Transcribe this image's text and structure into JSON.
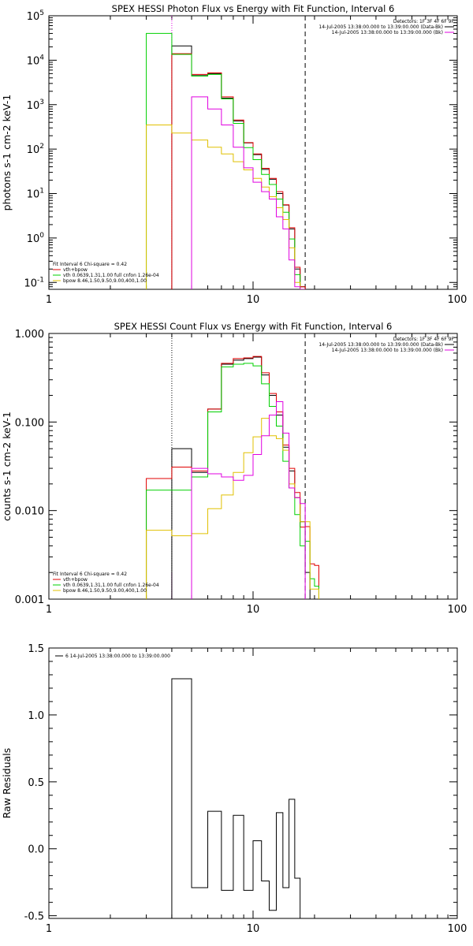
{
  "colors": {
    "data": "#000000",
    "total": "#e00000",
    "vth": "#00d000",
    "bpow": "#e0c000",
    "residual": "#e000e0",
    "frame": "#000000"
  },
  "chart_data": [
    {
      "type": "line",
      "title": "SPEX HESSI Photon Flux vs Energy with Fit Function, Interval 6",
      "ylabel": "photons s-1 cm-2 keV-1",
      "xscale": "log",
      "yscale": "log",
      "xlim": [
        1,
        100
      ],
      "ylim": [
        0.07,
        100000
      ],
      "xticks": [
        "1",
        "10",
        "100"
      ],
      "yticks": [
        {
          "v": 0.1,
          "b": "10",
          "e": "-1"
        },
        {
          "v": 1,
          "b": "10",
          "e": "0"
        },
        {
          "v": 10,
          "b": "10",
          "e": "1"
        },
        {
          "v": 100,
          "b": "10",
          "e": "2"
        },
        {
          "v": 1000,
          "b": "10",
          "e": "3"
        },
        {
          "v": 10000,
          "b": "10",
          "e": "4"
        },
        {
          "v": 100000,
          "b": "10",
          "e": "5"
        }
      ],
      "vlines": [
        {
          "x": 4.0,
          "style": "dotted",
          "color": "#e000e0"
        },
        {
          "x": 18.0,
          "style": "dashed",
          "color": "#000000"
        }
      ],
      "legend_right": [
        "Detectors: 1F 3F 4F 6F 9F",
        "14-Jul-2005 13:38:00.000 to 13:39:00.000 (Data-Bk)",
        "14-Jul-2005 13:38:00.000 to 13:39:00.000 (Bk)"
      ],
      "legend_left": [
        "Fit Interval 6    Chi-square = 0.42",
        "vth+bpow",
        "vth 0.0639,1.31,1.00  full cnfon 1.26e-04",
        "bpow 8.46,1.50,9.50,9.00,400,1.00"
      ],
      "edges": [
        3,
        4,
        5,
        6,
        7,
        8,
        9,
        10,
        11,
        12,
        13,
        14,
        15,
        16,
        17,
        18
      ],
      "series": [
        {
          "name": "data",
          "color": "#000000",
          "values": [
            null,
            21000,
            4500,
            5000,
            1400,
            430,
            138,
            75,
            35,
            21,
            10,
            5.5,
            1.6,
            0.2,
            0.08
          ]
        },
        {
          "name": "total",
          "color": "#e00000",
          "values": [
            null,
            14000,
            4800,
            5200,
            1500,
            450,
            140,
            78,
            37,
            22,
            11,
            5.6,
            1.7,
            0.22,
            0.08
          ]
        },
        {
          "name": "vth",
          "color": "#00d000",
          "values": [
            40000,
            13500,
            4400,
            4800,
            1350,
            380,
            108,
            58,
            27,
            16,
            7.5,
            3.8,
            0.95,
            0.15,
            0.07
          ]
        },
        {
          "name": "bpow",
          "color": "#e0c000",
          "values": [
            350,
            230,
            160,
            110,
            78,
            52,
            34,
            22,
            14,
            8.5,
            4.8,
            2.6,
            0.6,
            0.1,
            0.06
          ]
        },
        {
          "name": "bpow-low",
          "color": "#e000e0",
          "values": [
            null,
            null,
            1500,
            800,
            350,
            110,
            38,
            18,
            11,
            7.5,
            3,
            1.6,
            0.32,
            0.08,
            0.06
          ]
        }
      ]
    },
    {
      "type": "line",
      "title": "SPEX HESSI Count Flux vs Energy with Fit Function, Interval 6",
      "ylabel": "counts s-1 cm-2 keV-1",
      "xscale": "log",
      "yscale": "log",
      "xlim": [
        1,
        100
      ],
      "ylim": [
        0.001,
        1.0
      ],
      "xticks": [
        "1",
        "10",
        "100"
      ],
      "yticks": [
        {
          "v": 0.001,
          "l": "0.001"
        },
        {
          "v": 0.01,
          "l": "0.010"
        },
        {
          "v": 0.1,
          "l": "0.100"
        },
        {
          "v": 1,
          "l": "1.000"
        }
      ],
      "vlines": [
        {
          "x": 4.0,
          "style": "dotted",
          "color": "#000000"
        },
        {
          "x": 4.0,
          "style": "solid",
          "color": "#e000e0",
          "ymax": 0.002
        },
        {
          "x": 18.0,
          "style": "dashed",
          "color": "#000000"
        }
      ],
      "legend_right": [
        "Detectors: 1F 3F 4F 6F 9F",
        "14-Jul-2005 13:38:00.000 to 13:39:00.000 (Data-Bk)",
        "14-Jul-2005 13:38:00.000 to 13:39:00.000 (Bk)"
      ],
      "legend_left": [
        "Fit Interval 6    Chi-square = 0.42",
        "vth+bpow",
        "vth 0.0639,1.31,1.00  full cnfon 1.26e-04",
        "bpow 8.46,1.50,9.50,9.00,400,1.00"
      ],
      "edges": [
        3,
        4,
        5,
        6,
        7,
        8,
        9,
        10,
        11,
        12,
        13,
        14,
        15,
        16,
        17,
        18,
        19,
        20,
        21
      ],
      "series": [
        {
          "name": "data",
          "color": "#000000",
          "values": [
            null,
            0.05,
            0.027,
            0.14,
            0.45,
            0.5,
            0.52,
            0.54,
            0.34,
            0.2,
            0.12,
            0.052,
            0.028,
            0.014,
            0.0075,
            0.002,
            null,
            null
          ]
        },
        {
          "name": "total",
          "color": "#e00000",
          "values": [
            0.023,
            0.031,
            0.028,
            0.14,
            0.46,
            0.52,
            0.53,
            0.55,
            0.36,
            0.21,
            0.13,
            0.055,
            0.03,
            0.016,
            0.0065,
            0.0066,
            0.0025,
            0.0024
          ]
        },
        {
          "name": "vth",
          "color": "#00d000",
          "values": [
            0.017,
            0.017,
            0.024,
            0.13,
            0.42,
            0.45,
            0.46,
            0.43,
            0.27,
            0.15,
            0.09,
            0.036,
            0.018,
            0.009,
            0.004,
            0.0045,
            0.0017,
            0.0014
          ]
        },
        {
          "name": "bpow",
          "color": "#e0c000",
          "values": [
            0.006,
            0.0052,
            0.0055,
            0.0105,
            0.015,
            0.027,
            0.045,
            0.068,
            0.11,
            0.07,
            0.065,
            0.048,
            0.02,
            0.014,
            0.0075,
            0.0075,
            0.0013,
            0.0013
          ]
        },
        {
          "name": "residual",
          "color": "#e000e0",
          "values": [
            null,
            null,
            0.03,
            0.026,
            0.024,
            0.022,
            0.025,
            0.043,
            0.07,
            0.12,
            0.17,
            0.075,
            0.018,
            0.014,
            0.012,
            null,
            null,
            null
          ]
        }
      ]
    },
    {
      "type": "line",
      "ylabel": "Raw Residuals",
      "xscale": "log",
      "xlim": [
        1,
        100
      ],
      "ylim": [
        -0.52,
        1.5
      ],
      "xticks": [
        "1",
        "10",
        "100"
      ],
      "yticks": [
        {
          "v": -0.5,
          "l": "-0.5"
        },
        {
          "v": 0.0,
          "l": "0.0"
        },
        {
          "v": 0.5,
          "l": "0.5"
        },
        {
          "v": 1.0,
          "l": "1.0"
        },
        {
          "v": 1.5,
          "l": "1.5"
        }
      ],
      "legend": "6  14-Jul-2005 13:38:00.000 to 13:39:00.000",
      "edges": [
        4,
        5,
        6,
        7,
        8,
        9,
        10,
        11,
        12,
        13,
        14,
        15,
        16,
        17,
        18
      ],
      "series": [
        {
          "name": "residual",
          "color": "#000000",
          "values": [
            1.27,
            -0.29,
            0.28,
            -0.31,
            0.25,
            -0.31,
            0.06,
            -0.24,
            -0.46,
            0.27,
            -0.29,
            0.37,
            -0.22,
            -0.52
          ]
        }
      ]
    }
  ]
}
